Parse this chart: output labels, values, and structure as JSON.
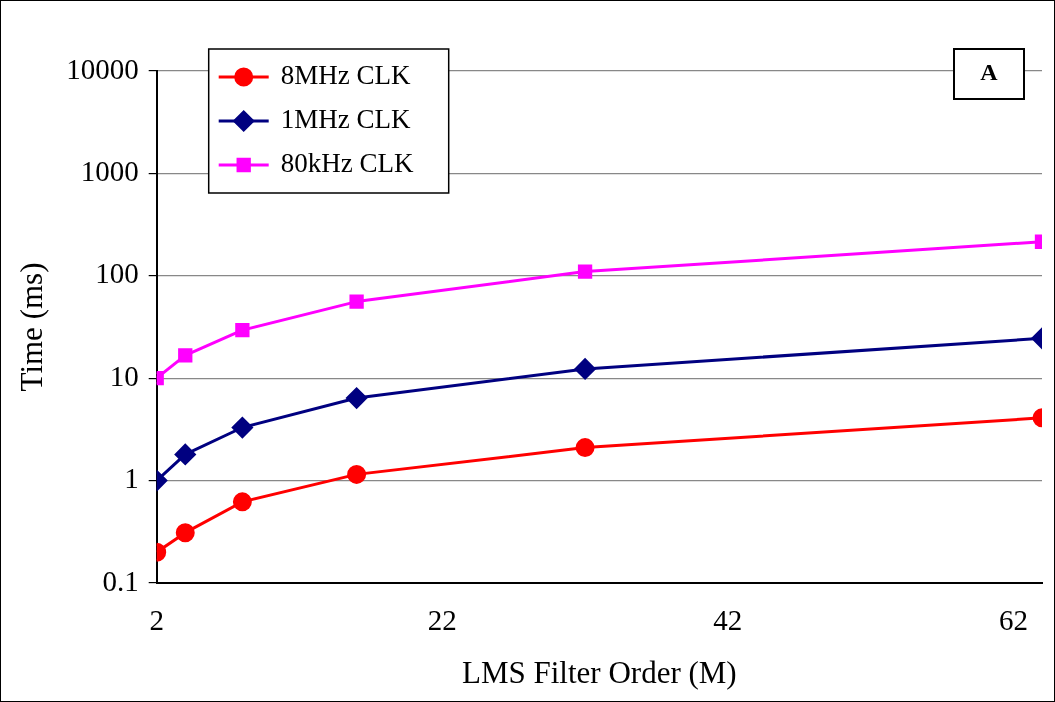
{
  "chart_data": {
    "type": "line",
    "xlabel": "LMS Filter Order (M)",
    "ylabel": "Time (ms)",
    "x": [
      2,
      4,
      8,
      16,
      32,
      64
    ],
    "series": [
      {
        "name": "8MHz CLK",
        "color": "#ff0000",
        "marker": "circle",
        "values": [
          0.2,
          0.31,
          0.62,
          1.15,
          2.1,
          4.1
        ]
      },
      {
        "name": "1MHz CLK",
        "color": "#000080",
        "marker": "diamond",
        "values": [
          1.0,
          1.8,
          3.3,
          6.4,
          12.3,
          24.5
        ]
      },
      {
        "name": "80kHz CLK",
        "color": "#ff00ff",
        "marker": "square",
        "values": [
          10,
          16.7,
          29.5,
          56,
          110,
          215
        ]
      }
    ],
    "xlim": [
      2,
      64
    ],
    "xticks": [
      2,
      22,
      42,
      62
    ],
    "ylim": [
      0.1,
      10000
    ],
    "yticks": [
      0.1,
      1,
      10,
      100,
      1000,
      10000
    ],
    "log": "y",
    "grid": "y",
    "legend": "top left",
    "line_style": "solid",
    "annotations": [
      "A"
    ]
  }
}
